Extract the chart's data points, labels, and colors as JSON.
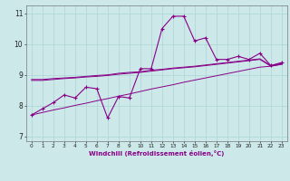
{
  "x": [
    0,
    1,
    2,
    3,
    4,
    5,
    6,
    7,
    8,
    9,
    10,
    11,
    12,
    13,
    14,
    15,
    16,
    17,
    18,
    19,
    20,
    21,
    22,
    23
  ],
  "line_jagged": [
    7.7,
    7.9,
    8.1,
    8.35,
    8.25,
    8.6,
    8.55,
    7.6,
    8.3,
    8.25,
    9.2,
    9.2,
    10.5,
    10.9,
    10.9,
    10.1,
    10.2,
    9.5,
    9.5,
    9.6,
    9.5,
    9.7,
    9.3,
    9.4
  ],
  "line_upper_smooth": [
    8.85,
    8.85,
    8.88,
    8.9,
    8.92,
    8.95,
    8.98,
    9.0,
    9.05,
    9.08,
    9.1,
    9.15,
    9.18,
    9.22,
    9.25,
    9.28,
    9.32,
    9.36,
    9.4,
    9.44,
    9.48,
    9.52,
    9.3,
    9.37
  ],
  "line_mid_smooth": [
    8.82,
    8.82,
    8.85,
    8.88,
    8.9,
    8.93,
    8.95,
    8.98,
    9.02,
    9.05,
    9.08,
    9.12,
    9.16,
    9.2,
    9.23,
    9.26,
    9.3,
    9.34,
    9.38,
    9.42,
    9.46,
    9.5,
    9.28,
    9.34
  ],
  "line_bottom_smooth": [
    7.7,
    7.78,
    7.86,
    7.93,
    8.01,
    8.08,
    8.16,
    8.23,
    8.31,
    8.38,
    8.46,
    8.54,
    8.61,
    8.68,
    8.76,
    8.83,
    8.9,
    8.97,
    9.04,
    9.11,
    9.18,
    9.25,
    9.28,
    9.35
  ],
  "color_main": "#880088",
  "bg_color": "#cce8e8",
  "grid_color": "#aad4d4",
  "xlabel": "Windchill (Refroidissement éolien,°C)",
  "ylim": [
    6.85,
    11.25
  ],
  "xlim": [
    -0.5,
    23.5
  ],
  "yticks": [
    7,
    8,
    9,
    10,
    11
  ],
  "xticks": [
    0,
    1,
    2,
    3,
    4,
    5,
    6,
    7,
    8,
    9,
    10,
    11,
    12,
    13,
    14,
    15,
    16,
    17,
    18,
    19,
    20,
    21,
    22,
    23
  ]
}
